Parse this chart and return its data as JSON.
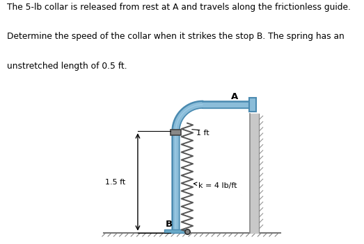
{
  "title_text": "The 5-lb collar is released from rest at A and travels along the frictionless guide.\nDetermine the speed of the collar when it strikes the stop B. The spring has an\nunstretched length of 0.5 ft.",
  "fig_width": 5.23,
  "fig_height": 3.52,
  "dpi": 100,
  "guide_color_light": "#8bbdd9",
  "guide_color_dark": "#4a8ab0",
  "guide_color_mid": "#6aaac8",
  "wall_color": "#c8c8c8",
  "wall_edge": "#888888",
  "ground_color": "#aaaaaa",
  "spring_color": "#555555",
  "base_color": "#6aaac8",
  "collar_color": "#888888",
  "label_A": "A",
  "label_B": "B",
  "label_1ft": "1 ft",
  "label_15ft": "1.5 ft",
  "label_k": "k = 4 lb/ft",
  "bg_color": "#ffffff",
  "text_color": "#000000"
}
